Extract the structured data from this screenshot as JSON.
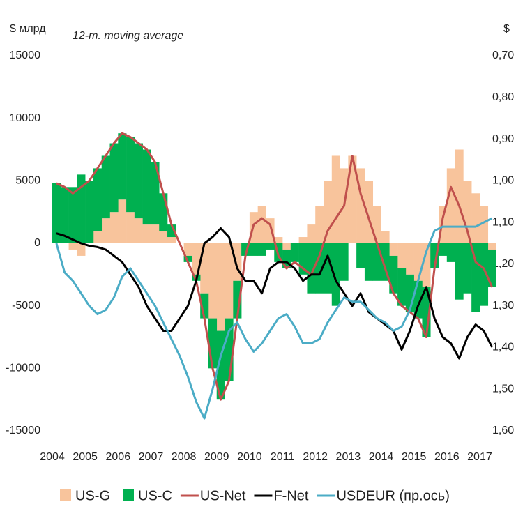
{
  "chart_data": {
    "type": "bar",
    "annotation": "12-m. moving average",
    "y_label": "$ млрд",
    "y2_label": "$",
    "x": [
      2004.0,
      2004.25,
      2004.5,
      2004.75,
      2005.0,
      2005.25,
      2005.5,
      2005.75,
      2006.0,
      2006.25,
      2006.5,
      2006.75,
      2007.0,
      2007.25,
      2007.5,
      2007.75,
      2008.0,
      2008.25,
      2008.5,
      2008.75,
      2009.0,
      2009.25,
      2009.5,
      2009.75,
      2010.0,
      2010.25,
      2010.5,
      2010.75,
      2011.0,
      2011.25,
      2011.5,
      2011.75,
      2012.0,
      2012.25,
      2012.5,
      2012.75,
      2013.0,
      2013.25,
      2013.5,
      2013.75,
      2014.0,
      2014.25,
      2014.5,
      2014.75,
      2015.0,
      2015.25,
      2015.5,
      2015.75,
      2016.0,
      2016.25,
      2016.5,
      2016.75,
      2017.0,
      2017.25
    ],
    "xlim": [
      2004,
      2017.4
    ],
    "xticks": [
      2004,
      2005,
      2006,
      2007,
      2008,
      2009,
      2010,
      2011,
      2012,
      2013,
      2014,
      2015,
      2016,
      2017
    ],
    "ylim": [
      -15000,
      15000
    ],
    "yticks": [
      -15000,
      -10000,
      -5000,
      0,
      5000,
      10000,
      15000
    ],
    "y2lim": [
      0.7,
      1.6
    ],
    "y2_inverted": true,
    "y2ticks": [
      {
        "value": 0.7,
        "label": "0,70"
      },
      {
        "value": 0.8,
        "label": "0,80"
      },
      {
        "value": 0.9,
        "label": "0,90"
      },
      {
        "value": 1.0,
        "label": "1,00"
      },
      {
        "value": 1.1,
        "label": "1,10"
      },
      {
        "value": 1.2,
        "label": "1,20"
      },
      {
        "value": 1.3,
        "label": "1,30"
      },
      {
        "value": 1.4,
        "label": "1,40"
      },
      {
        "value": 1.5,
        "label": "1,50"
      },
      {
        "value": 1.6,
        "label": "1,60"
      }
    ],
    "legend": "bottom",
    "series": [
      {
        "name": "US-G",
        "type": "bar",
        "color": "#f8c49c",
        "values": [
          0,
          0,
          -500,
          -1000,
          0,
          1000,
          2000,
          2500,
          3500,
          2500,
          2000,
          1500,
          1500,
          1000,
          500,
          0,
          -1000,
          -2500,
          -4000,
          -6000,
          -7000,
          -6000,
          -3000,
          0,
          2500,
          3000,
          2000,
          500,
          -500,
          0,
          500,
          1500,
          3000,
          5000,
          7000,
          6000,
          7000,
          6000,
          5000,
          3000,
          1000,
          -1000,
          -2000,
          -2500,
          -3000,
          -3500,
          0,
          3000,
          6000,
          7500,
          5000,
          4000,
          3000,
          -500
        ]
      },
      {
        "name": "US-C",
        "type": "bar",
        "color": "#00b050",
        "values": [
          4800,
          4500,
          4500,
          5500,
          5000,
          5000,
          5000,
          5500,
          5300,
          6000,
          6000,
          6000,
          5000,
          3000,
          1000,
          0,
          -500,
          -500,
          -2000,
          -4000,
          -5500,
          -5000,
          -3000,
          -1000,
          -1000,
          -1000,
          -500,
          -1500,
          -1500,
          -1500,
          -2500,
          -4000,
          -4000,
          -4000,
          -5000,
          -3000,
          0,
          -2000,
          -3000,
          -3000,
          -3000,
          -3000,
          -3000,
          -3000,
          -3000,
          -4000,
          -2000,
          -1000,
          -1500,
          -4500,
          -4000,
          -5500,
          -5000,
          -3000
        ]
      },
      {
        "name": "US-Net",
        "type": "line",
        "color": "#c0504d",
        "values": [
          4800,
          4500,
          4000,
          4500,
          5000,
          6000,
          7000,
          8000,
          8800,
          8500,
          8000,
          7500,
          6500,
          4000,
          1500,
          0,
          -1500,
          -3000,
          -6000,
          -10000,
          -12500,
          -11000,
          -6000,
          -1000,
          1500,
          2000,
          1500,
          -1000,
          -2000,
          -1500,
          -2000,
          -2500,
          -1000,
          1000,
          2000,
          3000,
          7000,
          4000,
          2000,
          0,
          -2000,
          -4000,
          -5000,
          -5500,
          -6000,
          -7500,
          -2000,
          2000,
          4500,
          3000,
          1000,
          -1500,
          -2000,
          -3500
        ]
      },
      {
        "name": "F-Net",
        "type": "line",
        "color": "#000000",
        "values": [
          800,
          600,
          300,
          0,
          -200,
          -300,
          -500,
          -1000,
          -1500,
          -2500,
          -3500,
          -5000,
          -6000,
          -7000,
          -7000,
          -6000,
          -5000,
          -3000,
          0,
          500,
          1200,
          500,
          -2000,
          -3000,
          -3000,
          -4000,
          -2000,
          -1500,
          -1500,
          -2000,
          -3000,
          -2500,
          -2500,
          -1000,
          -3000,
          -4000,
          -5000,
          -4000,
          -5500,
          -6000,
          -6500,
          -7000,
          -8500,
          -7000,
          -5000,
          -3500,
          -6000,
          -7500,
          -8000,
          -9200,
          -7500,
          -6500,
          -7000,
          -8300
        ]
      },
      {
        "name": "USDEUR (пр.ось)",
        "type": "line",
        "axis": "y2",
        "color": "#4bacc6",
        "values": [
          1.15,
          1.22,
          1.24,
          1.27,
          1.3,
          1.32,
          1.31,
          1.28,
          1.23,
          1.21,
          1.24,
          1.27,
          1.3,
          1.34,
          1.38,
          1.42,
          1.47,
          1.53,
          1.57,
          1.5,
          1.42,
          1.36,
          1.34,
          1.38,
          1.41,
          1.39,
          1.36,
          1.33,
          1.32,
          1.35,
          1.39,
          1.39,
          1.38,
          1.34,
          1.31,
          1.28,
          1.29,
          1.29,
          1.31,
          1.33,
          1.34,
          1.36,
          1.35,
          1.31,
          1.24,
          1.17,
          1.12,
          1.11,
          1.11,
          1.11,
          1.11,
          1.11,
          1.1,
          1.09
        ]
      }
    ]
  }
}
